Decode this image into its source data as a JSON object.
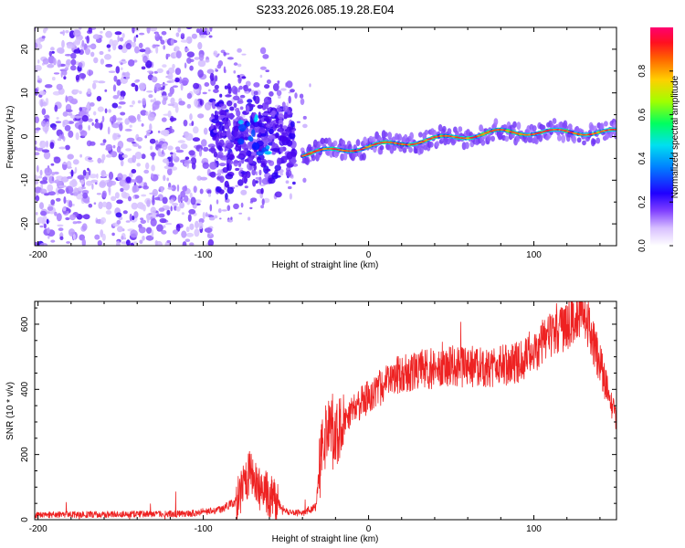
{
  "title": "S233.2026.085.19.28.E04",
  "chart_data": [
    {
      "type": "heatmap",
      "name": "spectrogram",
      "xlabel": "Height of straight line (km)",
      "ylabel": "Frequency (Hz)",
      "xlim": [
        -202,
        150
      ],
      "ylim": [
        -25,
        25
      ],
      "xticks": [
        -200,
        -100,
        0,
        100
      ],
      "xtick_labels": [
        "-200",
        "-100",
        "0",
        "100"
      ],
      "yticks": [
        20,
        10,
        0,
        -10,
        -20
      ],
      "ytick_labels": [
        "20",
        "10",
        "0",
        "-10",
        "-20"
      ],
      "colorbar": {
        "label": "Normalized spectral amplitude",
        "range": [
          0,
          1
        ],
        "ticks": [
          0.0,
          0.2,
          0.4,
          0.6,
          0.8
        ],
        "tick_labels": [
          "0.0",
          "0.2",
          "0.4",
          "0.6",
          "0.8"
        ],
        "colors": [
          "#ffffff",
          "#a070ff",
          "#4400ee",
          "#0000ff",
          "#00e0ff",
          "#00ff60",
          "#c0ff00",
          "#ffa000",
          "#ff2020",
          "#ff0070"
        ]
      },
      "regions": [
        {
          "name": "noise",
          "x_range": [
            -202,
            -95
          ],
          "f_range": [
            -25,
            25
          ],
          "amplitude": 0.1
        },
        {
          "name": "onset",
          "x_range": [
            -95,
            -45
          ],
          "f_range": [
            -15,
            15
          ],
          "amplitude": 0.25
        },
        {
          "name": "trail",
          "x_range": [
            -40,
            150
          ],
          "f_center_start": -4,
          "f_center_end": 1,
          "amplitude": 0.9
        }
      ]
    },
    {
      "type": "line",
      "name": "snr",
      "xlabel": "Height of straight line (km)",
      "ylabel": "SNR (10 * v/v)",
      "xlim": [
        -202,
        150
      ],
      "ylim": [
        0,
        670
      ],
      "xticks": [
        -200,
        -100,
        0,
        100
      ],
      "xtick_labels": [
        "-200",
        "-100",
        "0",
        "100"
      ],
      "yticks": [
        0,
        200,
        400,
        600
      ],
      "ytick_labels": [
        "0",
        "200",
        "400",
        "600"
      ],
      "color": "#ee2222",
      "envelope": {
        "x": [
          -202,
          -110,
          -90,
          -80,
          -72,
          -65,
          -58,
          -50,
          -40,
          -32,
          -28,
          -20,
          -10,
          0,
          10,
          20,
          30,
          50,
          70,
          90,
          100,
          110,
          120,
          130,
          140,
          150
        ],
        "y": [
          15,
          18,
          30,
          55,
          140,
          90,
          70,
          25,
          20,
          40,
          240,
          270,
          330,
          380,
          415,
          450,
          460,
          470,
          470,
          480,
          520,
          560,
          600,
          640,
          480,
          300
        ]
      }
    }
  ]
}
